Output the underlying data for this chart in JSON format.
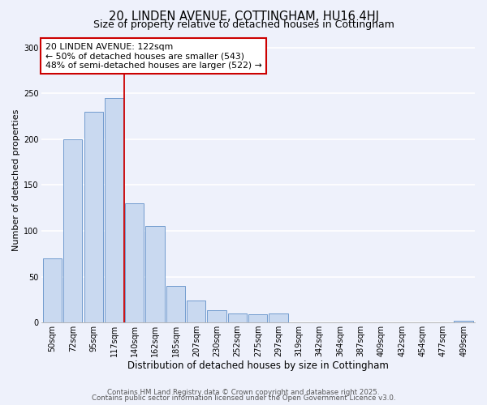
{
  "title": "20, LINDEN AVENUE, COTTINGHAM, HU16 4HJ",
  "subtitle": "Size of property relative to detached houses in Cottingham",
  "xlabel": "Distribution of detached houses by size in Cottingham",
  "ylabel": "Number of detached properties",
  "bar_labels": [
    "50sqm",
    "72sqm",
    "95sqm",
    "117sqm",
    "140sqm",
    "162sqm",
    "185sqm",
    "207sqm",
    "230sqm",
    "252sqm",
    "275sqm",
    "297sqm",
    "319sqm",
    "342sqm",
    "364sqm",
    "387sqm",
    "409sqm",
    "432sqm",
    "454sqm",
    "477sqm",
    "499sqm"
  ],
  "bar_values": [
    70,
    200,
    230,
    245,
    130,
    105,
    40,
    24,
    13,
    10,
    9,
    10,
    0,
    0,
    0,
    0,
    0,
    0,
    0,
    0,
    2
  ],
  "bar_color": "#c9d9f0",
  "bar_edgecolor": "#6090c8",
  "vline_color": "#cc0000",
  "annotation_title": "20 LINDEN AVENUE: 122sqm",
  "annotation_line2": "← 50% of detached houses are smaller (543)",
  "annotation_line3": "48% of semi-detached houses are larger (522) →",
  "annotation_box_edgecolor": "#cc0000",
  "annotation_box_facecolor": "#ffffff",
  "ylim": [
    0,
    310
  ],
  "yticks": [
    0,
    50,
    100,
    150,
    200,
    250,
    300
  ],
  "background_color": "#eef1fb",
  "grid_color": "#ffffff",
  "footer_line1": "Contains HM Land Registry data © Crown copyright and database right 2025.",
  "footer_line2": "Contains public sector information licensed under the Open Government Licence v3.0.",
  "title_fontsize": 10.5,
  "subtitle_fontsize": 9,
  "xlabel_fontsize": 8.5,
  "ylabel_fontsize": 8,
  "tick_fontsize": 7,
  "annotation_fontsize": 7.8,
  "footer_fontsize": 6.2
}
